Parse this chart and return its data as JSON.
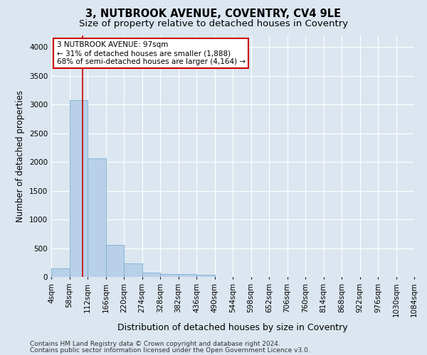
{
  "title": "3, NUTBROOK AVENUE, COVENTRY, CV4 9LE",
  "subtitle": "Size of property relative to detached houses in Coventry",
  "xlabel": "Distribution of detached houses by size in Coventry",
  "ylabel": "Number of detached properties",
  "bar_color": "#b8d0e8",
  "bar_edgecolor": "#7aafd4",
  "background_color": "#dce6f0",
  "figure_color": "#dce6f0",
  "grid_color": "#ffffff",
  "annotation_text": "3 NUTBROOK AVENUE: 97sqm\n← 31% of detached houses are smaller (1,888)\n68% of semi-detached houses are larger (4,164) →",
  "annotation_box_color": "#ffffff",
  "annotation_border_color": "#cc0000",
  "property_line_x": 97,
  "property_line_color": "#cc0000",
  "footer_line1": "Contains HM Land Registry data © Crown copyright and database right 2024.",
  "footer_line2": "Contains public sector information licensed under the Open Government Licence v3.0.",
  "bin_edges": [
    4,
    58,
    112,
    166,
    220,
    274,
    328,
    382,
    436,
    490,
    544,
    598,
    652,
    706,
    760,
    814,
    868,
    922,
    976,
    1030,
    1084
  ],
  "bar_heights": [
    150,
    3070,
    2060,
    560,
    235,
    70,
    45,
    45,
    40,
    0,
    0,
    0,
    0,
    0,
    0,
    0,
    0,
    0,
    0,
    0
  ],
  "ylim": [
    0,
    4200
  ],
  "xlim": [
    4,
    1084
  ],
  "yticks": [
    0,
    500,
    1000,
    1500,
    2000,
    2500,
    3000,
    3500,
    4000
  ],
  "title_fontsize": 10.5,
  "subtitle_fontsize": 9.5,
  "xlabel_fontsize": 9,
  "ylabel_fontsize": 8.5,
  "tick_fontsize": 7.5,
  "annotation_fontsize": 7.5,
  "footer_fontsize": 6.5
}
